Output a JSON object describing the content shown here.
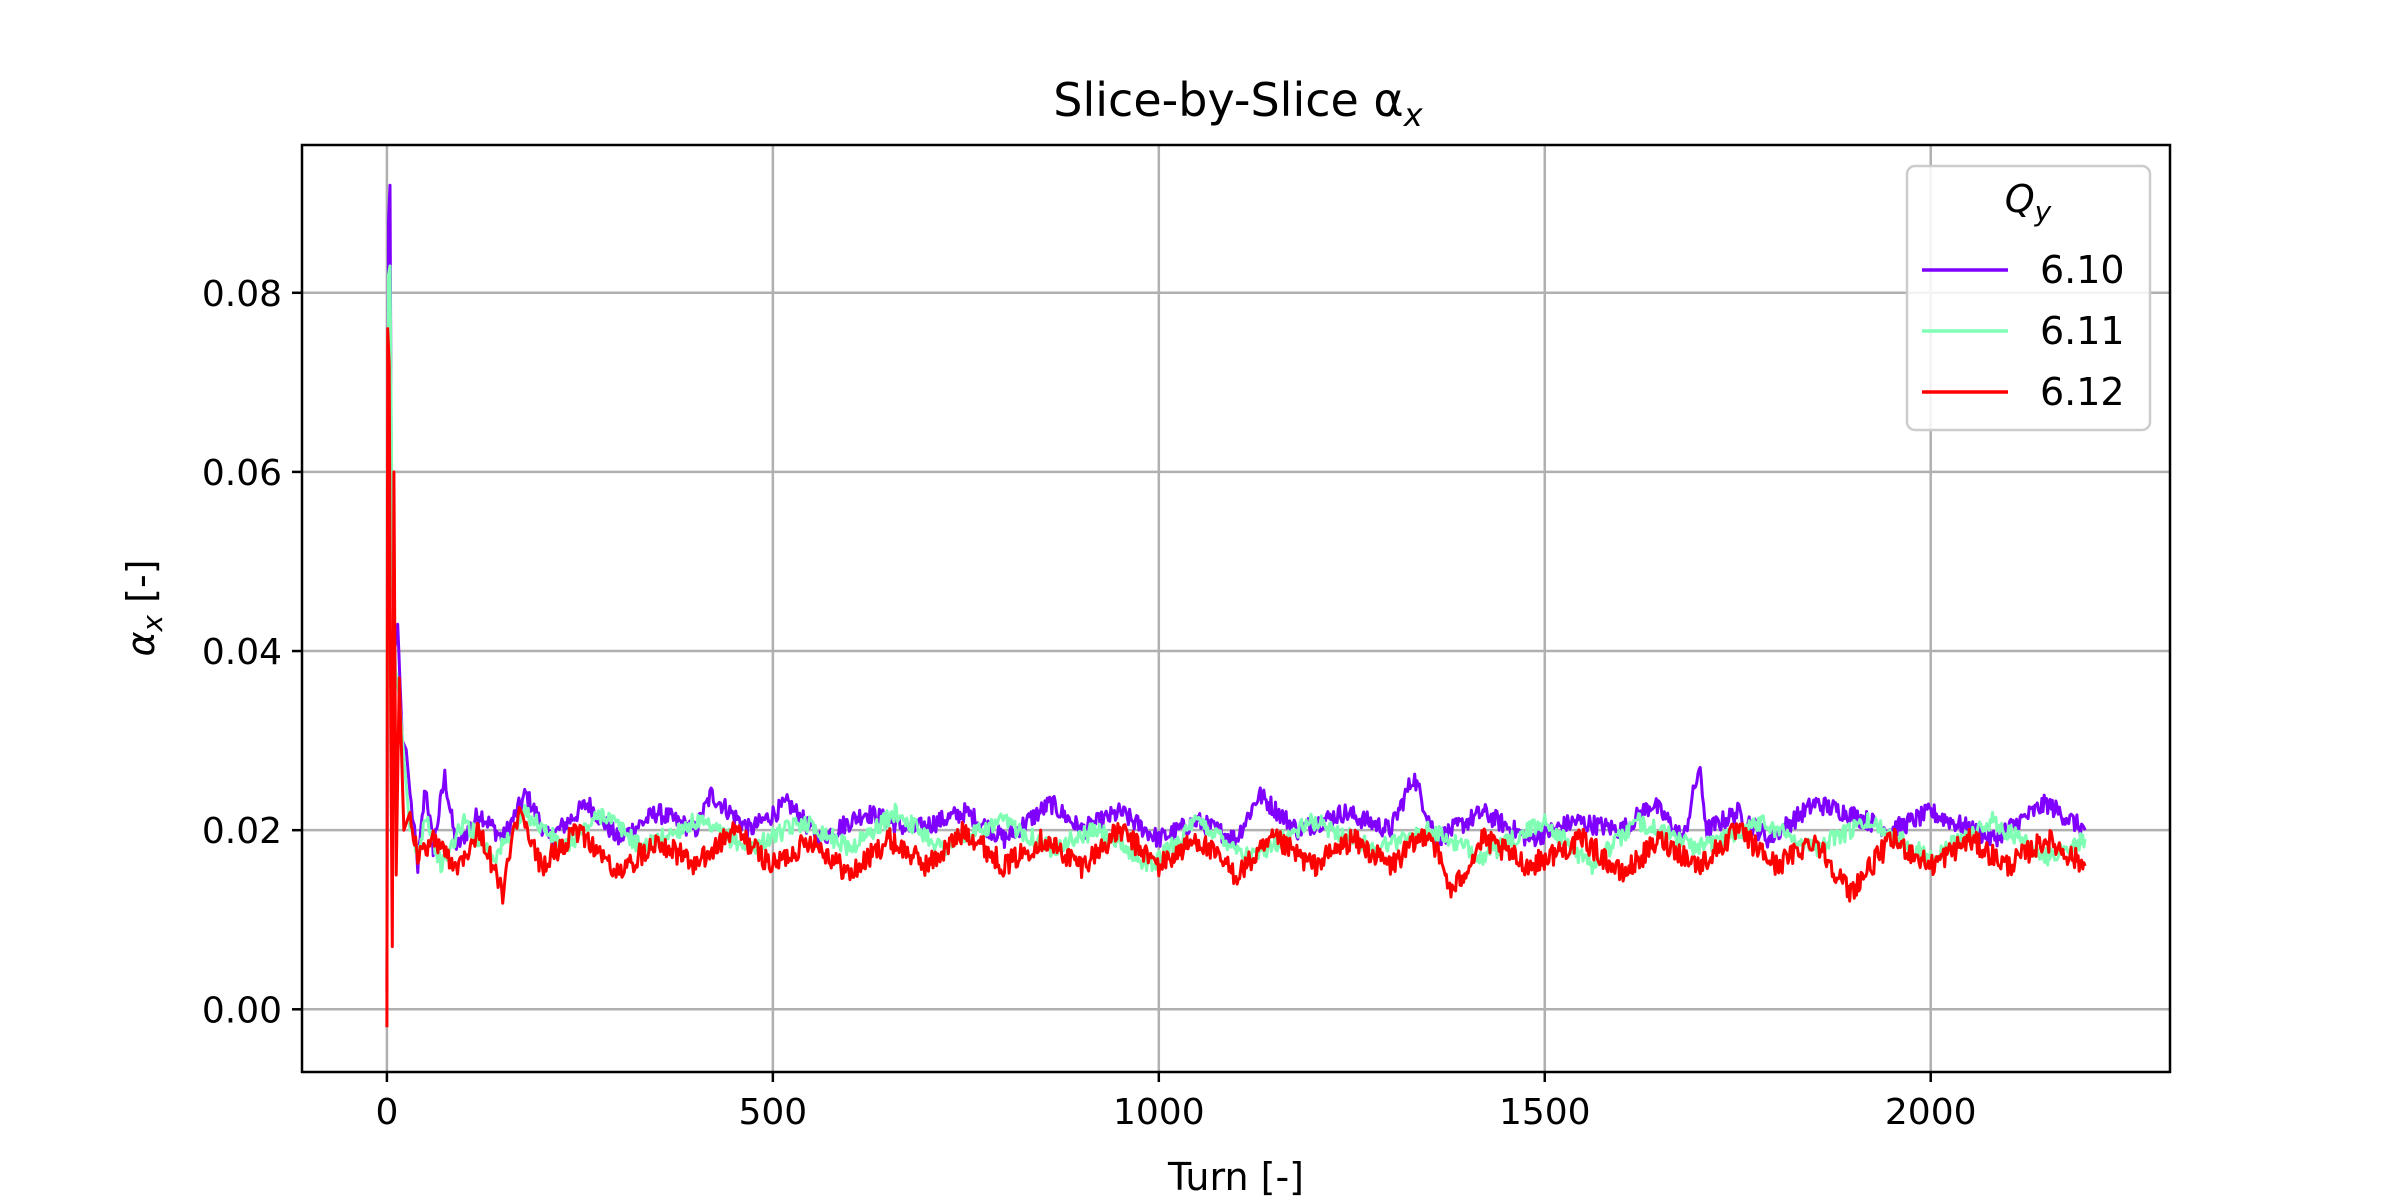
{
  "chart_data": {
    "type": "line",
    "title": "Slice-by-Slice α",
    "title_subscript": "x",
    "xlabel": "Turn [-]",
    "ylabel": "α",
    "ylabel_subscript": "x",
    "ylabel_unit": " [-]",
    "xlim": [
      -110,
      2310
    ],
    "ylim": [
      -0.007,
      0.0965
    ],
    "xticks": [
      0,
      500,
      1000,
      1500,
      2000
    ],
    "xtick_labels": [
      "0",
      "500",
      "1000",
      "1500",
      "2000"
    ],
    "yticks": [
      0.0,
      0.02,
      0.04,
      0.06,
      0.08
    ],
    "ytick_labels": [
      "0.00",
      "0.02",
      "0.04",
      "0.06",
      "0.08"
    ],
    "grid": true,
    "legend": {
      "title": "Q",
      "title_subscript": "y",
      "placement": "top-right"
    },
    "series": [
      {
        "name": "6.10",
        "color": "#8000ff",
        "points": [
          [
            0,
            0.002
          ],
          [
            2,
            0.088
          ],
          [
            4,
            0.092
          ],
          [
            6,
            0.055
          ],
          [
            10,
            0.04
          ],
          [
            14,
            0.043
          ],
          [
            20,
            0.03
          ],
          [
            25,
            0.029
          ],
          [
            30,
            0.024
          ],
          [
            40,
            0.016
          ],
          [
            50,
            0.025
          ],
          [
            60,
            0.018
          ],
          [
            75,
            0.026
          ],
          [
            90,
            0.018
          ],
          [
            120,
            0.022
          ],
          [
            150,
            0.019
          ],
          [
            180,
            0.024
          ],
          [
            210,
            0.019
          ],
          [
            260,
            0.023
          ],
          [
            300,
            0.019
          ],
          [
            350,
            0.022
          ],
          [
            400,
            0.02
          ],
          [
            420,
            0.024
          ],
          [
            470,
            0.02
          ],
          [
            520,
            0.023
          ],
          [
            560,
            0.019
          ],
          [
            620,
            0.022
          ],
          [
            680,
            0.02
          ],
          [
            750,
            0.022
          ],
          [
            800,
            0.019
          ],
          [
            860,
            0.023
          ],
          [
            900,
            0.02
          ],
          [
            950,
            0.022
          ],
          [
            1000,
            0.019
          ],
          [
            1050,
            0.021
          ],
          [
            1100,
            0.019
          ],
          [
            1130,
            0.024
          ],
          [
            1180,
            0.02
          ],
          [
            1240,
            0.022
          ],
          [
            1300,
            0.02
          ],
          [
            1330,
            0.026
          ],
          [
            1360,
            0.019
          ],
          [
            1420,
            0.022
          ],
          [
            1480,
            0.019
          ],
          [
            1540,
            0.021
          ],
          [
            1600,
            0.02
          ],
          [
            1640,
            0.023
          ],
          [
            1680,
            0.019
          ],
          [
            1700,
            0.027
          ],
          [
            1710,
            0.02
          ],
          [
            1750,
            0.022
          ],
          [
            1790,
            0.019
          ],
          [
            1850,
            0.023
          ],
          [
            1890,
            0.022
          ],
          [
            1950,
            0.02
          ],
          [
            2000,
            0.022
          ],
          [
            2080,
            0.019
          ],
          [
            2150,
            0.023
          ],
          [
            2200,
            0.02
          ]
        ]
      },
      {
        "name": "6.11",
        "color": "#80ffb4",
        "points": [
          [
            0,
            0.004
          ],
          [
            2,
            0.082
          ],
          [
            4,
            0.083
          ],
          [
            7,
            0.05
          ],
          [
            11,
            0.038
          ],
          [
            16,
            0.035
          ],
          [
            22,
            0.028
          ],
          [
            30,
            0.02
          ],
          [
            40,
            0.017
          ],
          [
            50,
            0.022
          ],
          [
            70,
            0.016
          ],
          [
            100,
            0.021
          ],
          [
            140,
            0.017
          ],
          [
            180,
            0.022
          ],
          [
            230,
            0.018
          ],
          [
            280,
            0.022
          ],
          [
            330,
            0.018
          ],
          [
            400,
            0.021
          ],
          [
            470,
            0.018
          ],
          [
            540,
            0.021
          ],
          [
            600,
            0.018
          ],
          [
            660,
            0.022
          ],
          [
            720,
            0.018
          ],
          [
            800,
            0.021
          ],
          [
            860,
            0.018
          ],
          [
            920,
            0.02
          ],
          [
            990,
            0.016
          ],
          [
            1050,
            0.021
          ],
          [
            1120,
            0.017
          ],
          [
            1200,
            0.021
          ],
          [
            1280,
            0.018
          ],
          [
            1350,
            0.02
          ],
          [
            1420,
            0.017
          ],
          [
            1500,
            0.021
          ],
          [
            1560,
            0.016
          ],
          [
            1620,
            0.021
          ],
          [
            1700,
            0.018
          ],
          [
            1780,
            0.021
          ],
          [
            1850,
            0.018
          ],
          [
            1920,
            0.021
          ],
          [
            2000,
            0.017
          ],
          [
            2080,
            0.021
          ],
          [
            2150,
            0.017
          ],
          [
            2200,
            0.019
          ]
        ]
      },
      {
        "name": "6.12",
        "color": "#ff0000",
        "points": [
          [
            0,
            -0.002
          ],
          [
            1,
            0.076
          ],
          [
            3,
            0.072
          ],
          [
            5,
            0.03
          ],
          [
            7,
            0.007
          ],
          [
            9,
            0.06
          ],
          [
            12,
            0.015
          ],
          [
            16,
            0.037
          ],
          [
            22,
            0.02
          ],
          [
            30,
            0.022
          ],
          [
            40,
            0.017
          ],
          [
            60,
            0.019
          ],
          [
            90,
            0.016
          ],
          [
            120,
            0.02
          ],
          [
            150,
            0.013
          ],
          [
            170,
            0.022
          ],
          [
            200,
            0.016
          ],
          [
            250,
            0.02
          ],
          [
            300,
            0.015
          ],
          [
            350,
            0.019
          ],
          [
            400,
            0.016
          ],
          [
            450,
            0.02
          ],
          [
            500,
            0.016
          ],
          [
            550,
            0.019
          ],
          [
            600,
            0.015
          ],
          [
            650,
            0.019
          ],
          [
            700,
            0.016
          ],
          [
            750,
            0.02
          ],
          [
            800,
            0.016
          ],
          [
            850,
            0.019
          ],
          [
            900,
            0.016
          ],
          [
            950,
            0.02
          ],
          [
            1000,
            0.016
          ],
          [
            1050,
            0.019
          ],
          [
            1100,
            0.015
          ],
          [
            1150,
            0.019
          ],
          [
            1200,
            0.016
          ],
          [
            1250,
            0.019
          ],
          [
            1300,
            0.016
          ],
          [
            1350,
            0.02
          ],
          [
            1380,
            0.013
          ],
          [
            1420,
            0.019
          ],
          [
            1480,
            0.016
          ],
          [
            1550,
            0.019
          ],
          [
            1600,
            0.015
          ],
          [
            1650,
            0.019
          ],
          [
            1700,
            0.016
          ],
          [
            1750,
            0.02
          ],
          [
            1800,
            0.016
          ],
          [
            1850,
            0.019
          ],
          [
            1895,
            0.013
          ],
          [
            1950,
            0.019
          ],
          [
            2000,
            0.016
          ],
          [
            2050,
            0.019
          ],
          [
            2100,
            0.016
          ],
          [
            2150,
            0.019
          ],
          [
            2200,
            0.016
          ]
        ]
      }
    ]
  }
}
